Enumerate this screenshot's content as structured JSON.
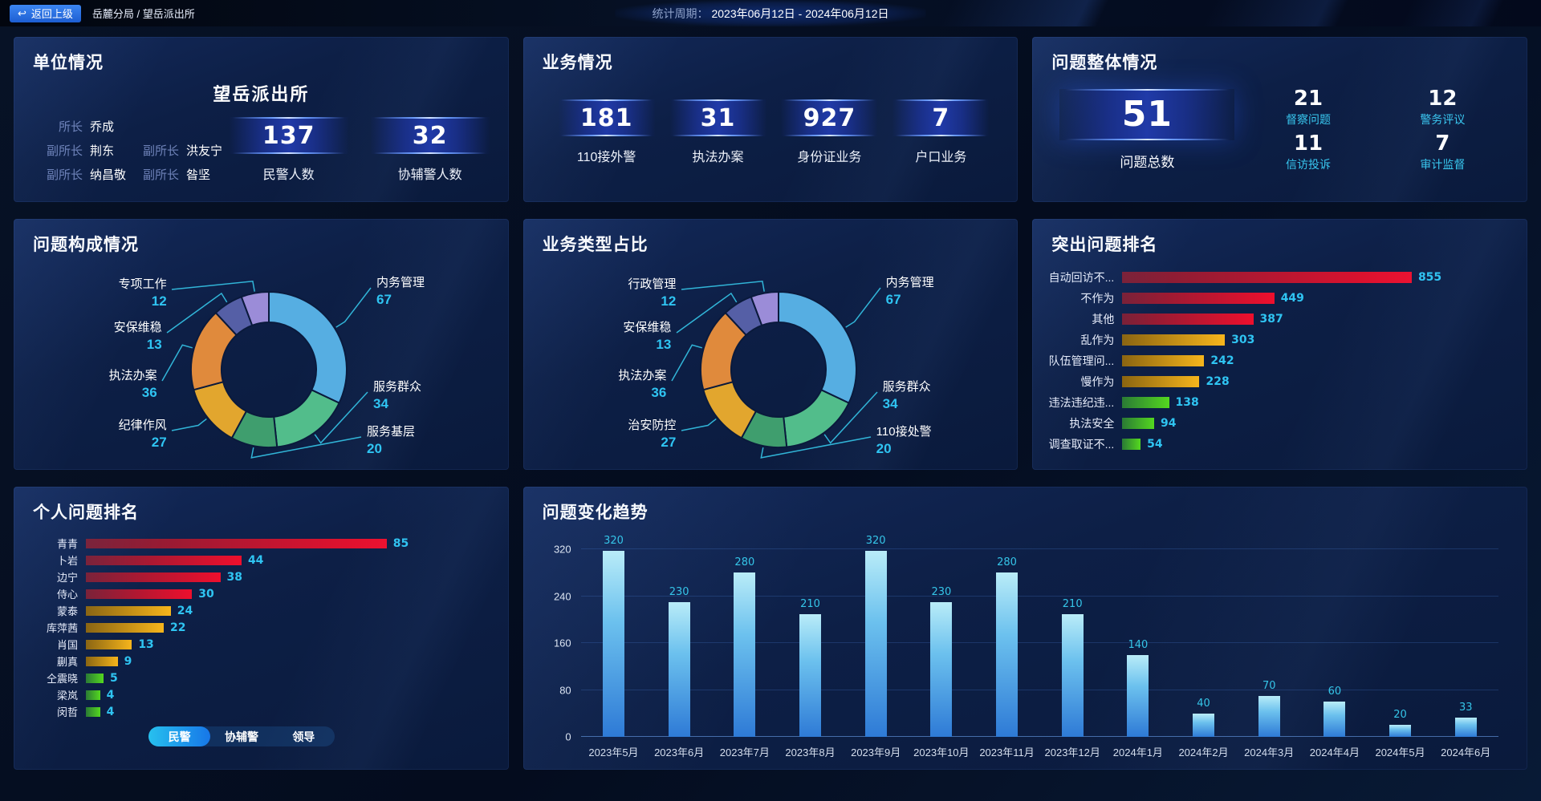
{
  "header": {
    "back_label": "返回上级",
    "breadcrumb": "岳麓分局 / 望岳派出所",
    "period_label": "统计周期：",
    "period_value": "2023年06月12日 - 2024年06月12日"
  },
  "unit_panel": {
    "title": "单位情况",
    "station_name": "望岳派出所",
    "leaders": [
      {
        "role": "所长",
        "name": "乔成"
      },
      {
        "role": "副所长",
        "name": "荆东"
      },
      {
        "role": "副所长",
        "name": "洪友宁"
      },
      {
        "role": "副所长",
        "name": "纳昌敬"
      },
      {
        "role": "副所长",
        "name": "昝坚"
      }
    ],
    "stats": [
      {
        "value": "137",
        "label": "民警人数"
      },
      {
        "value": "32",
        "label": "协辅警人数"
      }
    ]
  },
  "business_panel": {
    "title": "业务情况",
    "stats": [
      {
        "value": "181",
        "label": "110接外警"
      },
      {
        "value": "31",
        "label": "执法办案"
      },
      {
        "value": "927",
        "label": "身份证业务"
      },
      {
        "value": "7",
        "label": "户口业务"
      }
    ]
  },
  "problem_panel": {
    "title": "问题整体情况",
    "total": {
      "value": "51",
      "label": "问题总数"
    },
    "stats": [
      {
        "value": "21",
        "label": "督察问题"
      },
      {
        "value": "12",
        "label": "警务评议"
      },
      {
        "value": "11",
        "label": "信访投诉"
      },
      {
        "value": "7",
        "label": "审计监督"
      }
    ]
  },
  "tabs": {
    "items": [
      "民警",
      "协辅警",
      "领导"
    ],
    "active_index": 0
  },
  "palette": {
    "accent_cyan": "#35c5e8",
    "value_cyan": "#2fc4f2",
    "bar_groups": {
      "red": [
        "#7a1f35",
        "#ee0f2d"
      ],
      "gold": [
        "#8a6410",
        "#f6b51c"
      ],
      "green": [
        "#2a7a35",
        "#54d81f"
      ]
    },
    "trend_bar": [
      "#b9ecf8",
      "#2e7ad6"
    ],
    "pie": [
      "#56aee2",
      "#52bd8b",
      "#3f9e6e",
      "#e2a62e",
      "#e08a3c",
      "#555fa6",
      "#9b8cd8"
    ]
  },
  "chart_data": [
    {
      "id": "problem-composition",
      "type": "pie",
      "title": "问题构成情况",
      "categories": [
        "内务管理",
        "服务群众",
        "服务基层",
        "纪律作风",
        "执法办案",
        "安保维稳",
        "专项工作"
      ],
      "values": [
        67,
        34,
        20,
        27,
        36,
        13,
        12
      ],
      "legend_position": "callout-labels"
    },
    {
      "id": "business-type",
      "type": "pie",
      "title": "业务类型占比",
      "categories": [
        "内务管理",
        "服务群众",
        "110接处警",
        "治安防控",
        "执法办案",
        "安保维稳",
        "行政管理"
      ],
      "values": [
        67,
        34,
        20,
        27,
        36,
        13,
        12
      ],
      "legend_position": "callout-labels"
    },
    {
      "id": "top-problems",
      "type": "bar",
      "orientation": "horizontal",
      "title": "突出问题排名",
      "categories": [
        "自动回访不...",
        "不作为",
        "其他",
        "乱作为",
        "队伍管理问...",
        "慢作为",
        "违法违纪违...",
        "执法安全",
        "调查取证不..."
      ],
      "values": [
        855,
        449,
        387,
        303,
        242,
        228,
        138,
        94,
        54
      ],
      "groups": [
        "red",
        "red",
        "red",
        "gold",
        "gold",
        "gold",
        "green",
        "green",
        "green"
      ],
      "xlim": [
        0,
        900
      ],
      "grid": false
    },
    {
      "id": "personal-ranking",
      "type": "bar",
      "orientation": "horizontal",
      "title": "个人问题排名",
      "categories": [
        "青青",
        "卜岩",
        "边宁",
        "侍心",
        "蒙泰",
        "库萍茜",
        "肖国",
        "蒯真",
        "仝震晓",
        "梁岚",
        "闵哲"
      ],
      "values": [
        85,
        44,
        38,
        30,
        24,
        22,
        13,
        9,
        5,
        4,
        4
      ],
      "groups": [
        "red",
        "red",
        "red",
        "red",
        "gold",
        "gold",
        "gold",
        "gold",
        "green",
        "green",
        "green"
      ],
      "xlim": [
        0,
        90
      ],
      "grid": false
    },
    {
      "id": "problem-trend",
      "type": "bar",
      "orientation": "vertical",
      "title": "问题变化趋势",
      "categories": [
        "2023年5月",
        "2023年6月",
        "2023年7月",
        "2023年8月",
        "2023年9月",
        "2023年10月",
        "2023年11月",
        "2023年12月",
        "2024年1月",
        "2024年2月",
        "2024年3月",
        "2024年4月",
        "2024年5月",
        "2024年6月"
      ],
      "values": [
        320,
        230,
        280,
        210,
        320,
        230,
        280,
        210,
        140,
        40,
        70,
        60,
        20,
        33
      ],
      "yticks": [
        0,
        80,
        160,
        240,
        320
      ],
      "ylim": [
        0,
        345
      ],
      "grid": true
    }
  ]
}
